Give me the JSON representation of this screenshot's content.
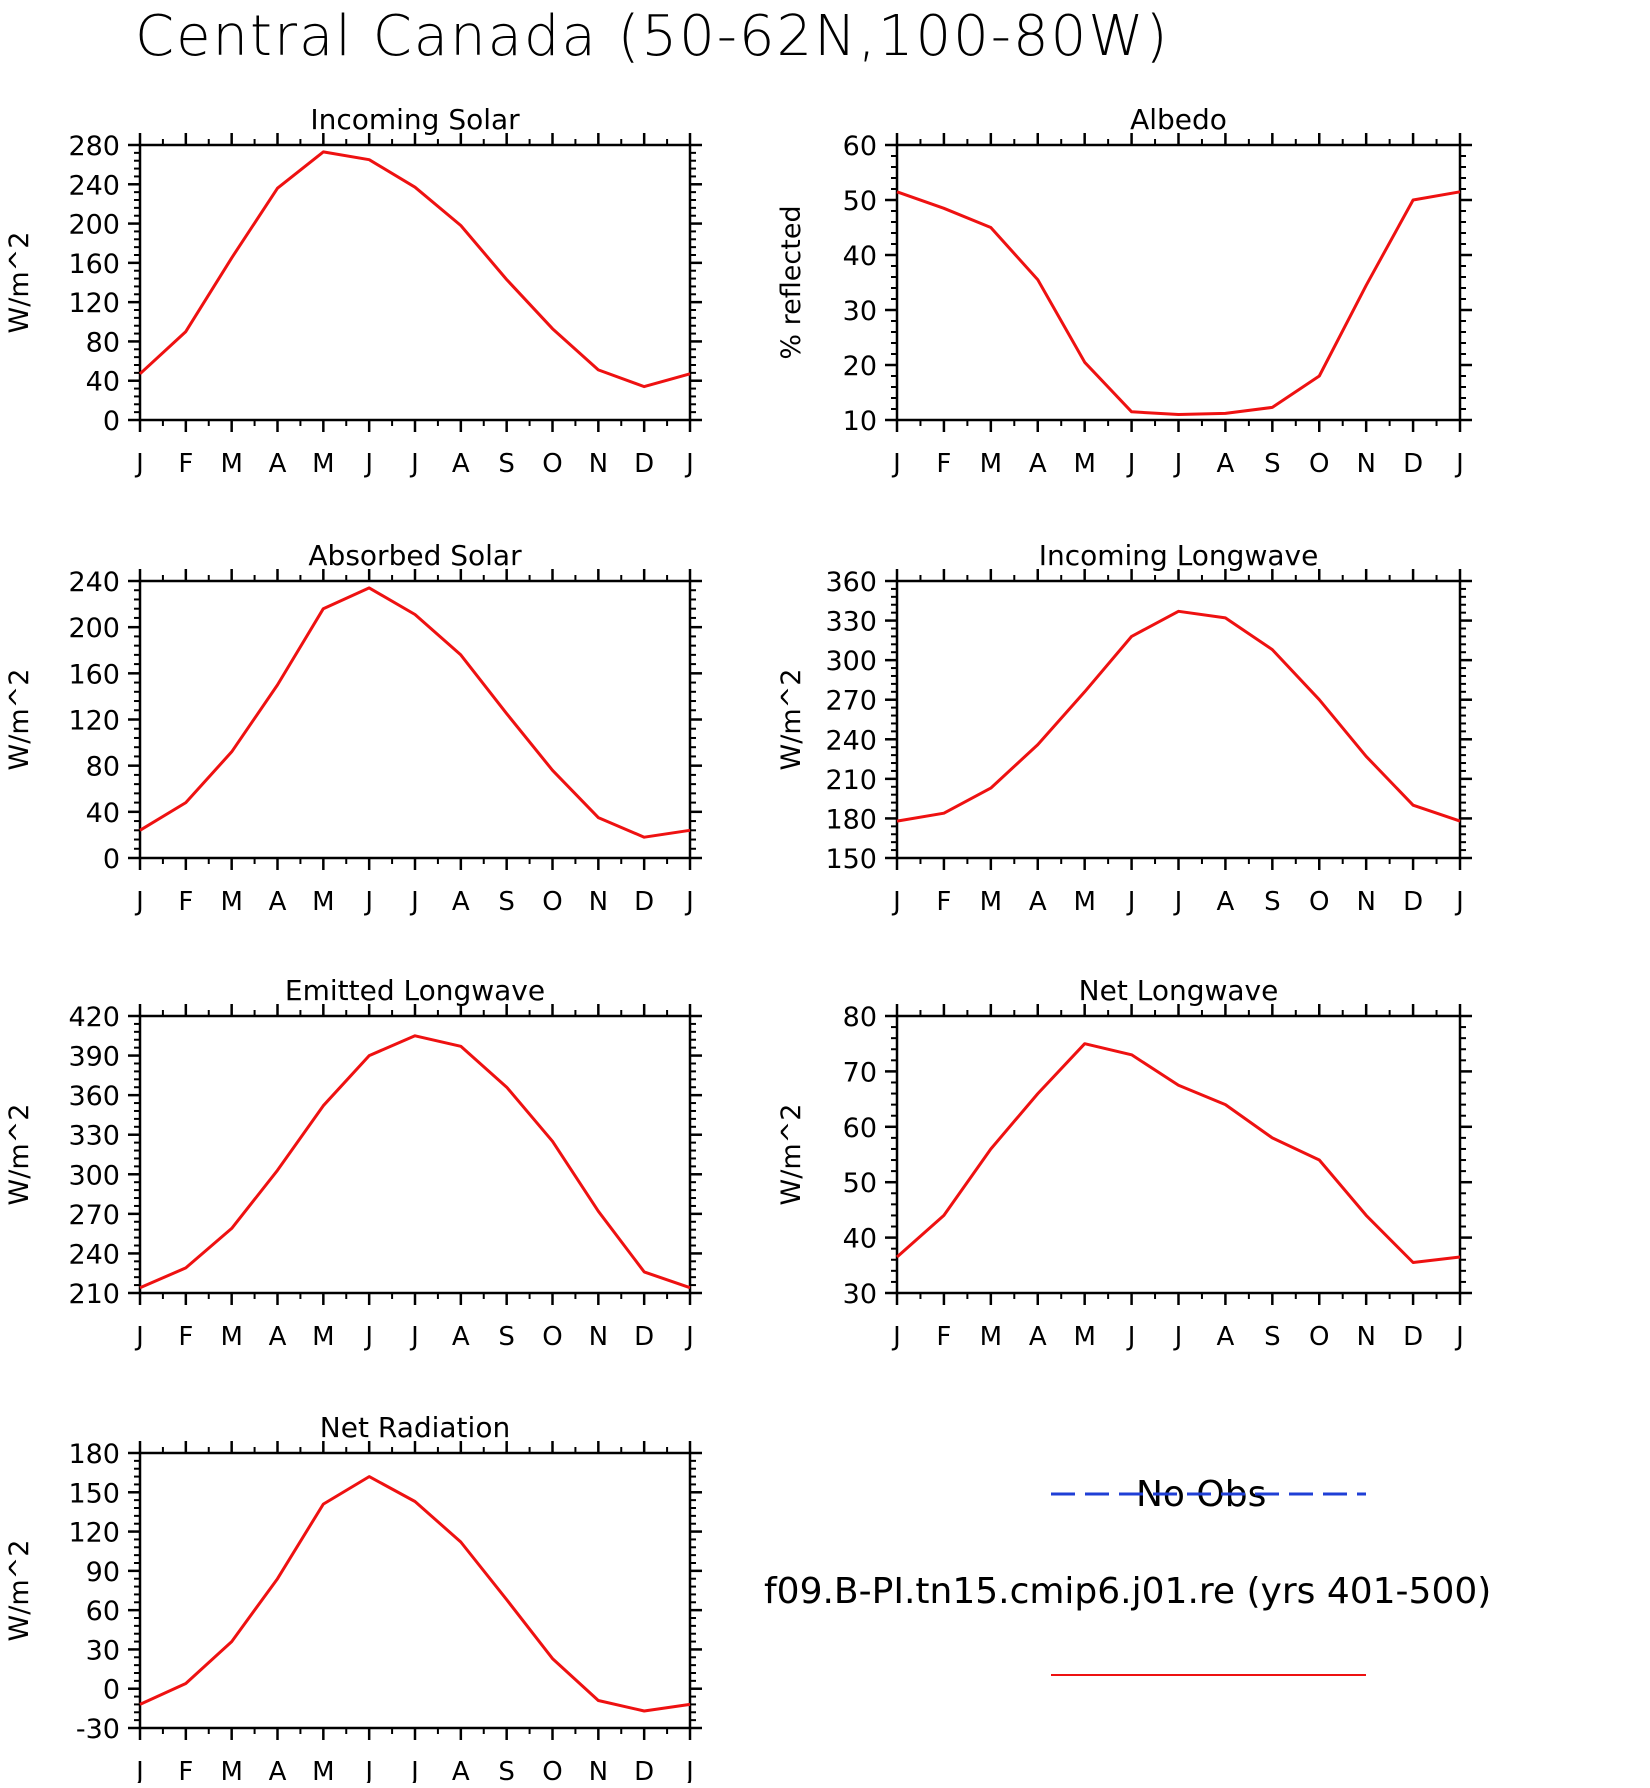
{
  "figure": {
    "title": "Central Canada (50-62N,100-80W)"
  },
  "legend": {
    "obs_label": "No Obs",
    "obs_color": "#1f3fd6",
    "model_label": "f09.B-PI.tn15.cmip6.j01.re (yrs 401-500)",
    "model_color": "#ee1111"
  },
  "chart_data": [
    {
      "type": "line",
      "title": "Incoming Solar",
      "ylabel": "W/m^2",
      "categories": [
        "J",
        "F",
        "M",
        "A",
        "M",
        "J",
        "J",
        "A",
        "S",
        "O",
        "N",
        "D",
        "J"
      ],
      "ylim": [
        0,
        280
      ],
      "yticks": [
        0,
        40,
        80,
        120,
        160,
        200,
        240,
        280
      ],
      "series": [
        {
          "values": [
            47,
            90,
            165,
            236,
            273,
            265,
            237,
            198,
            143,
            93,
            51,
            34,
            47
          ],
          "color": "#ee1111"
        }
      ]
    },
    {
      "type": "line",
      "title": "Albedo",
      "ylabel": "% reflected",
      "categories": [
        "J",
        "F",
        "M",
        "A",
        "M",
        "J",
        "J",
        "A",
        "S",
        "O",
        "N",
        "D",
        "J"
      ],
      "ylim": [
        10,
        60
      ],
      "yticks": [
        10,
        20,
        30,
        40,
        50,
        60
      ],
      "series": [
        {
          "values": [
            51.5,
            48.5,
            45,
            35.5,
            20.5,
            11.5,
            11,
            11.2,
            12.3,
            18,
            34.5,
            50,
            51.5
          ],
          "color": "#ee1111"
        }
      ]
    },
    {
      "type": "line",
      "title": "Absorbed Solar",
      "ylabel": "W/m^2",
      "categories": [
        "J",
        "F",
        "M",
        "A",
        "M",
        "J",
        "J",
        "A",
        "S",
        "O",
        "N",
        "D",
        "J"
      ],
      "ylim": [
        0,
        240
      ],
      "yticks": [
        0,
        40,
        80,
        120,
        160,
        200,
        240
      ],
      "series": [
        {
          "values": [
            24,
            48,
            92,
            150,
            216,
            234,
            211,
            176,
            125,
            76,
            35,
            18,
            24
          ],
          "color": "#ee1111"
        }
      ]
    },
    {
      "type": "line",
      "title": "Incoming Longwave",
      "ylabel": "W/m^2",
      "categories": [
        "J",
        "F",
        "M",
        "A",
        "M",
        "J",
        "J",
        "A",
        "S",
        "O",
        "N",
        "D",
        "J"
      ],
      "ylim": [
        150,
        360
      ],
      "yticks": [
        150,
        180,
        210,
        240,
        270,
        300,
        330,
        360
      ],
      "series": [
        {
          "values": [
            178,
            184,
            203,
            236,
            276,
            318,
            337,
            332,
            308,
            270,
            227,
            190,
            178
          ],
          "color": "#ee1111"
        }
      ]
    },
    {
      "type": "line",
      "title": "Emitted Longwave",
      "ylabel": "W/m^2",
      "categories": [
        "J",
        "F",
        "M",
        "A",
        "M",
        "J",
        "J",
        "A",
        "S",
        "O",
        "N",
        "D",
        "J"
      ],
      "ylim": [
        210,
        420
      ],
      "yticks": [
        210,
        240,
        270,
        300,
        330,
        360,
        390,
        420
      ],
      "series": [
        {
          "values": [
            214,
            229,
            259,
            303,
            352,
            390,
            405,
            397,
            366,
            325,
            272,
            226,
            214
          ],
          "color": "#ee1111"
        }
      ]
    },
    {
      "type": "line",
      "title": "Net Longwave",
      "ylabel": "W/m^2",
      "categories": [
        "J",
        "F",
        "M",
        "A",
        "M",
        "J",
        "J",
        "A",
        "S",
        "O",
        "N",
        "D",
        "J"
      ],
      "ylim": [
        30,
        80
      ],
      "yticks": [
        30,
        40,
        50,
        60,
        70,
        80
      ],
      "series": [
        {
          "values": [
            36.5,
            44,
            56,
            66,
            75,
            73,
            67.5,
            64,
            58,
            54,
            44,
            35.5,
            36.5
          ],
          "color": "#ee1111"
        }
      ]
    },
    {
      "type": "line",
      "title": "Net Radiation",
      "ylabel": "W/m^2",
      "categories": [
        "J",
        "F",
        "M",
        "A",
        "M",
        "J",
        "J",
        "A",
        "S",
        "O",
        "N",
        "D",
        "J"
      ],
      "ylim": [
        -30,
        180
      ],
      "yticks": [
        -30,
        0,
        30,
        60,
        90,
        120,
        150,
        180
      ],
      "series": [
        {
          "values": [
            -12,
            4,
            36,
            84,
            141,
            162,
            143,
            112,
            68,
            23,
            -9,
            -17,
            -12
          ],
          "color": "#ee1111"
        }
      ]
    }
  ]
}
